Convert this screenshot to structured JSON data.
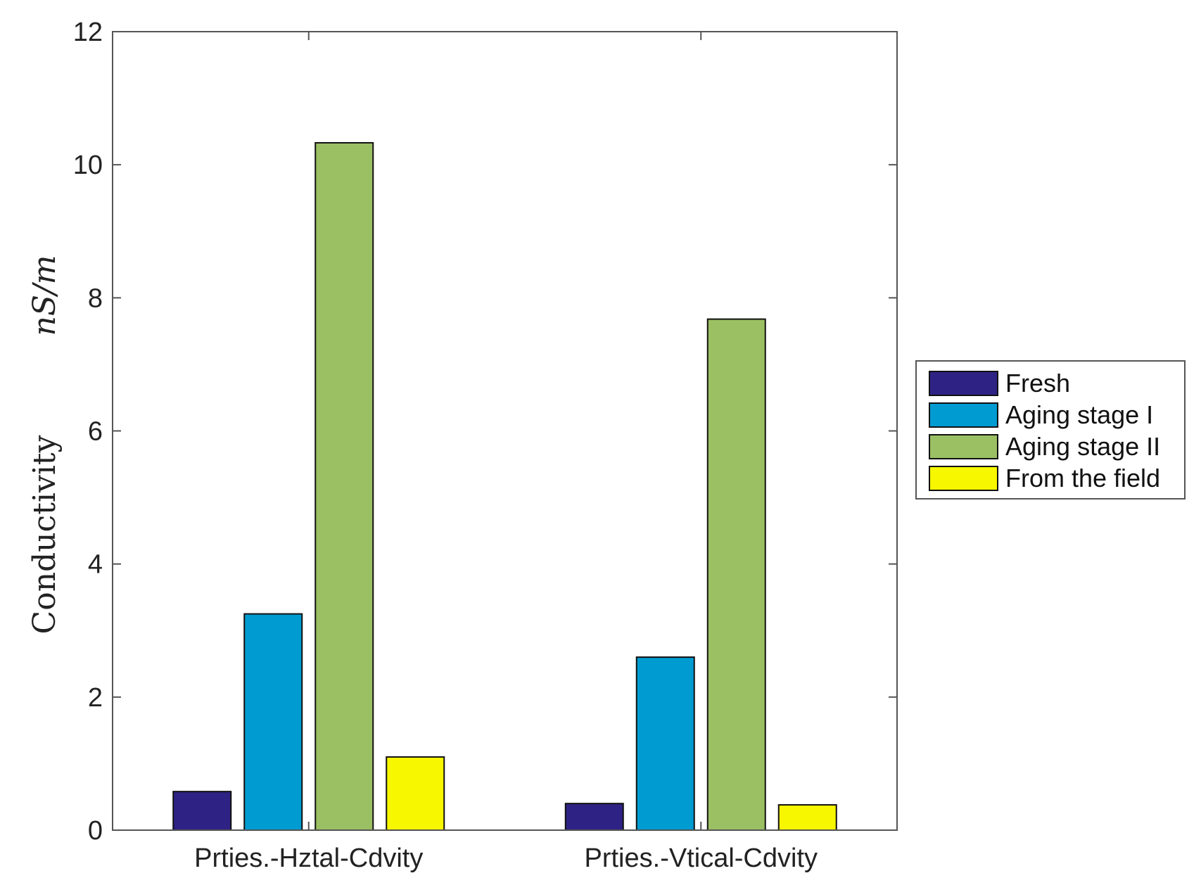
{
  "chart_data": {
    "type": "bar",
    "categories": [
      "Prties.-Hztal-Cdvity",
      "Prties.-Vtical-Cdvity"
    ],
    "series": [
      {
        "name": "Fresh",
        "color": "#2e2384",
        "values": [
          0.58,
          0.4
        ]
      },
      {
        "name": "Aging stage I",
        "color": "#009bd1",
        "values": [
          3.25,
          2.6
        ]
      },
      {
        "name": "Aging stage II",
        "color": "#9bbf63",
        "values": [
          10.33,
          7.68
        ]
      },
      {
        "name": "From the field",
        "color": "#f7f700",
        "values": [
          1.1,
          0.38
        ]
      }
    ],
    "ylabel": "Conductivity",
    "ylabel_unit": "nS/m",
    "xlabel": "",
    "title": "",
    "ylim": [
      0,
      12
    ],
    "yticks": [
      0,
      2,
      4,
      6,
      8,
      10,
      12
    ],
    "grid": false,
    "legend_position": "right-center"
  }
}
